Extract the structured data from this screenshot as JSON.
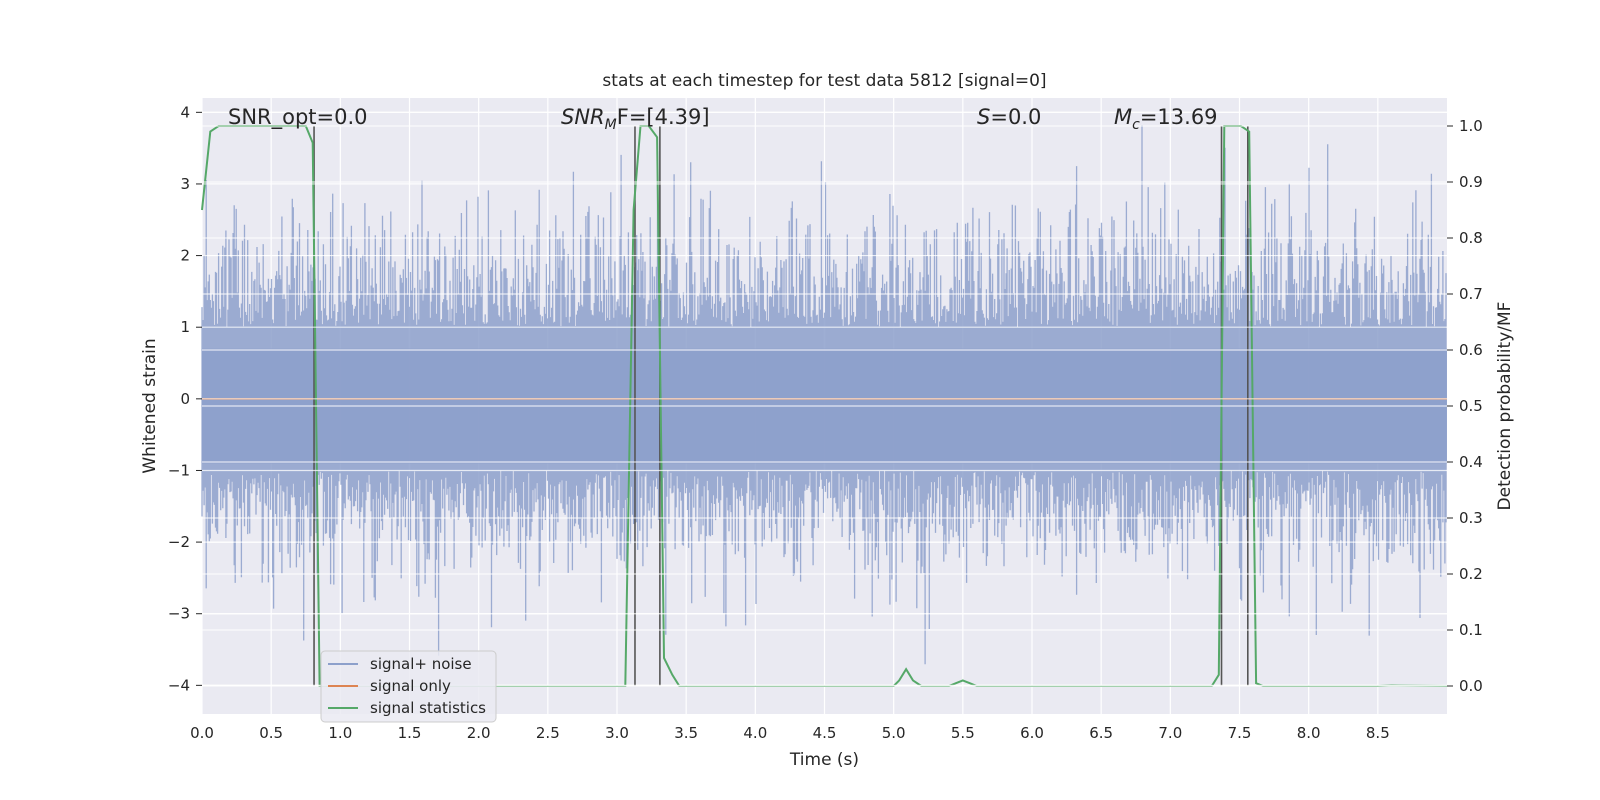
{
  "chart_data": {
    "type": "line",
    "title": "stats at each timestep for test data 5812 [signal=0]",
    "xlabel": "Time (s)",
    "ylabel": "Whitened strain",
    "y2label": "Detection probability/MF",
    "xlim": [
      0,
      9.0
    ],
    "ylim": [
      -4.4,
      4.2
    ],
    "y2lim": [
      -0.05,
      1.05
    ],
    "xticks": [
      0.0,
      0.5,
      1.0,
      1.5,
      2.0,
      2.5,
      3.0,
      3.5,
      4.0,
      4.5,
      5.0,
      5.5,
      6.0,
      6.5,
      7.0,
      7.5,
      8.0,
      8.5
    ],
    "xtick_labels": [
      "0.0",
      "0.5",
      "1.0",
      "1.5",
      "2.0",
      "2.5",
      "3.0",
      "3.5",
      "4.0",
      "4.5",
      "5.0",
      "5.5",
      "6.0",
      "6.5",
      "7.0",
      "7.5",
      "8.0",
      "8.5"
    ],
    "yticks": [
      4,
      3,
      2,
      1,
      0,
      -1,
      -2,
      -3,
      -4
    ],
    "ytick_labels": [
      "4",
      "3",
      "2",
      "1",
      "0",
      "−1",
      "−2",
      "−3",
      "−4"
    ],
    "y2ticks": [
      1.0,
      0.9,
      0.8,
      0.7,
      0.6,
      0.5,
      0.4,
      0.3,
      0.2,
      0.1,
      0.0
    ],
    "y2tick_labels": [
      "1.0",
      "0.9",
      "0.8",
      "0.7",
      "0.6",
      "0.5",
      "0.4",
      "0.3",
      "0.2",
      "0.1",
      "0.0"
    ],
    "grid": true,
    "legend_position": "lower-left",
    "annotations": {
      "snr_opt": "SNR_opt=0.0",
      "snr_mf_base": "SNR",
      "snr_mf_sub": "M",
      "snr_mf_rest": "F=[4.39]",
      "s_base": "S",
      "s_rest": "=0.0",
      "mc_base": "M",
      "mc_sub": "c",
      "mc_rest": "=13.69"
    },
    "series": [
      {
        "name": "signal+ noise",
        "color": "#8da0cb",
        "axis": "left",
        "description_kind": "noise",
        "envelope_upper": 2.3,
        "envelope_lower": -1.9
      },
      {
        "name": "signal only",
        "color": "#dd8452",
        "axis": "left",
        "constant_value": 0.0
      },
      {
        "name": "signal statistics",
        "color": "#55a868",
        "axis": "right",
        "x": [
          0.0,
          0.06,
          0.12,
          0.2,
          0.3,
          0.4,
          0.5,
          0.6,
          0.7,
          0.75,
          0.8,
          0.85,
          0.9,
          0.95,
          1.0,
          1.5,
          2.0,
          2.5,
          3.0,
          3.06,
          3.12,
          3.17,
          3.23,
          3.29,
          3.34,
          3.4,
          3.45,
          3.5,
          4.0,
          4.5,
          5.0,
          5.04,
          5.09,
          5.14,
          5.2,
          5.3,
          5.4,
          5.45,
          5.5,
          5.55,
          5.6,
          6.0,
          6.5,
          7.0,
          7.3,
          7.35,
          7.39,
          7.45,
          7.51,
          7.57,
          7.62,
          7.67,
          7.8,
          8.0,
          8.5,
          8.6,
          9.0
        ],
        "y": [
          0.85,
          0.99,
          1.0,
          1.0,
          1.0,
          1.0,
          1.0,
          1.0,
          1.0,
          1.0,
          0.97,
          0.0,
          0.0,
          0.0,
          0.0,
          0.0,
          0.0,
          0.0,
          0.0,
          0.0,
          0.85,
          1.0,
          1.0,
          0.98,
          0.05,
          0.02,
          0.0,
          0.0,
          0.0,
          0.0,
          0.0,
          0.01,
          0.03,
          0.01,
          0.0,
          0.0,
          0.0,
          0.005,
          0.01,
          0.005,
          0.0,
          0.0,
          0.0,
          0.0,
          0.0,
          0.02,
          1.0,
          1.0,
          1.0,
          0.99,
          0.005,
          0.0,
          0.0,
          0.0,
          0.0,
          0.001,
          0.0
        ]
      }
    ],
    "vertical_lines_x": [
      0.81,
      3.13,
      3.31,
      7.37,
      7.56
    ]
  }
}
